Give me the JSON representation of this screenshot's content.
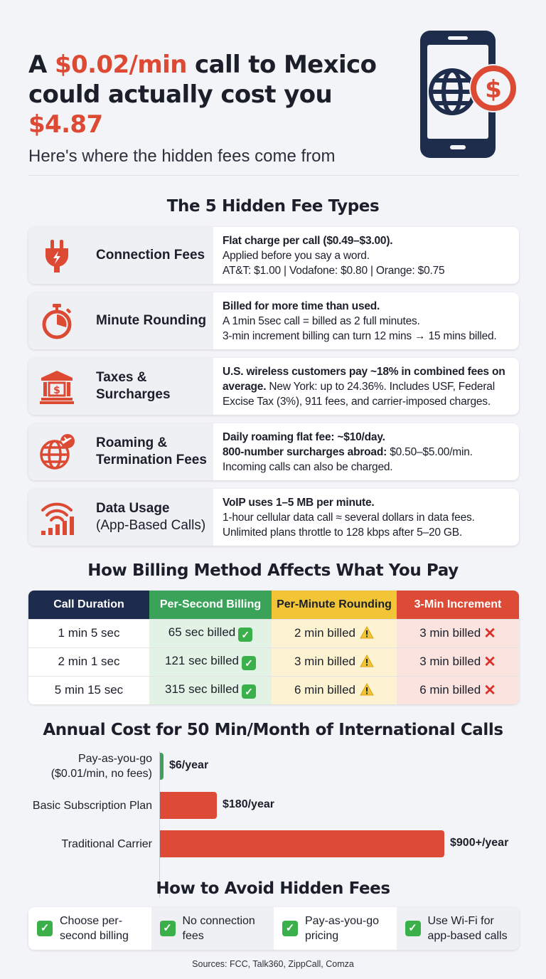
{
  "header": {
    "title_p1": "A ",
    "title_hl1": "$0.02/min",
    "title_p2": " call to Mexico could actually cost you ",
    "title_hl2": "$4.87",
    "subtitle": "Here's where the hidden fees come from",
    "icon": "phone-globe-dollar-icon"
  },
  "fees": {
    "title": "The 5 Hidden Fee Types",
    "items": [
      {
        "icon": "plug-icon",
        "label": "Connection Fees",
        "label_soft": "",
        "bold": "Flat charge per call ($0.49–$3.00).",
        "l2": "Applied before you say a word.",
        "l3": "AT&T: $1.00 | Vodafone: $0.80 | Orange: $0.75"
      },
      {
        "icon": "stopwatch-icon",
        "label": "Minute Rounding",
        "label_soft": "",
        "bold": "Billed for more time than used.",
        "l2": "A 1min 5sec call = billed as 2 full minutes.",
        "l3": "3-min increment billing can turn 12 mins → 15 mins billed."
      },
      {
        "icon": "bank-icon",
        "label": "Taxes & Surcharges",
        "label_soft": "",
        "bold": "U.S. wireless customers pay ~18% in combined fees on average.",
        "l2": " New York: up to 24.36%. Includes USF, Federal Excise Tax (3%), 911 fees, and carrier-imposed charges.",
        "l3": ""
      },
      {
        "icon": "globe-plane-icon",
        "label": "Roaming & Termination Fees",
        "label_soft": "",
        "bold": "Daily roaming flat fee: ~$10/day.",
        "l2b": "800-number surcharges abroad:",
        "l2": " $0.50–$5.00/min.",
        "l3": "Incoming calls can also be charged."
      },
      {
        "icon": "wifi-signal-icon",
        "label": "Data Usage",
        "label_soft": "(App-Based Calls)",
        "bold": "VoIP uses 1–5 MB per minute.",
        "l2": "1-hour cellular data call ≈ several dollars in data fees.",
        "l3": "Unlimited plans throttle to 128 kbps after 5–20 GB."
      }
    ]
  },
  "billing": {
    "title": "How Billing Method Affects What You Pay",
    "headers": [
      "Call Duration",
      "Per-Second Billing",
      "Per-Minute Rounding",
      "3-Min Increment"
    ],
    "rows": [
      [
        "1 min 5 sec",
        "65 sec billed",
        "2 min billed",
        "3 min billed"
      ],
      [
        "2 min 1 sec",
        "121 sec billed",
        "3 min billed",
        "3 min billed"
      ],
      [
        "5 min 15 sec",
        "315 sec billed",
        "6 min billed",
        "6 min billed"
      ]
    ],
    "marks": {
      "good": "✓",
      "bad": "✕"
    }
  },
  "annual": {
    "title": "Annual Cost for 50 Min/Month of International Calls",
    "chart_data": {
      "type": "bar",
      "orientation": "horizontal",
      "categories": [
        "Pay-as-you-go ($0.01/min, no fees)",
        "Basic Subscription Plan",
        "Traditional Carrier"
      ],
      "category_lines": [
        [
          "Pay-as-you-go",
          "($0.01/min, no fees)"
        ],
        [
          "Basic Subscription Plan"
        ],
        [
          "Traditional Carrier"
        ]
      ],
      "values": [
        6,
        180,
        900
      ],
      "value_labels": [
        "$6/year",
        "$180/year",
        "$900+/year"
      ],
      "colors": [
        "#3ba25a",
        "#dd4a36",
        "#dd4a36"
      ],
      "xlim": [
        0,
        900
      ]
    }
  },
  "avoid": {
    "title": "How to Avoid Hidden Fees",
    "items": [
      "Choose per-second billing",
      "No connection fees",
      "Pay-as-you-go pricing",
      "Use Wi-Fi for app-based calls"
    ]
  },
  "sources": "Sources: FCC, Talk360, ZippCall, Comza"
}
